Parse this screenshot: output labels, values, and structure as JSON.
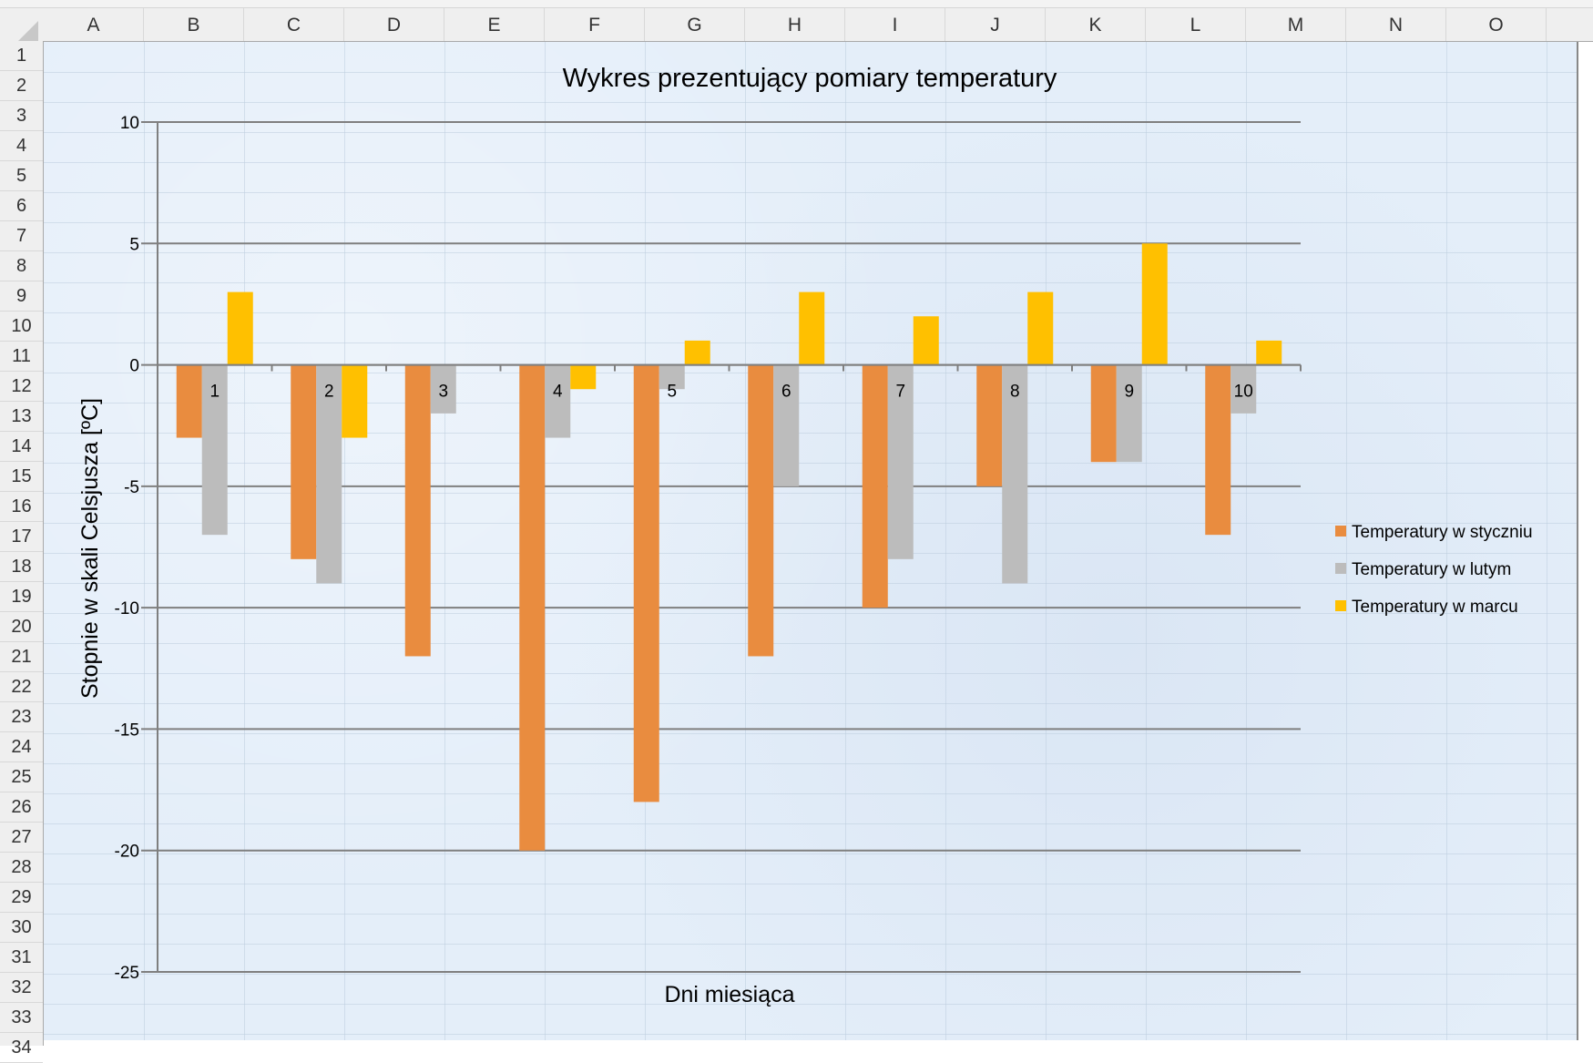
{
  "spreadsheet": {
    "columns": [
      "A",
      "B",
      "C",
      "D",
      "E",
      "F",
      "G",
      "H",
      "I",
      "J",
      "K",
      "L",
      "M",
      "N",
      "O"
    ],
    "rows": [
      "1",
      "2",
      "3",
      "4",
      "5",
      "6",
      "7",
      "8",
      "9",
      "10",
      "11",
      "12",
      "13",
      "14",
      "15",
      "16",
      "17",
      "18",
      "19",
      "20",
      "21",
      "22",
      "23",
      "24",
      "25",
      "26",
      "27",
      "28",
      "29",
      "30",
      "31",
      "32",
      "33",
      "34"
    ]
  },
  "chart_data": {
    "type": "bar",
    "title": "Wykres prezentujący pomiary temperatury",
    "xlabel": "Dni miesiąca",
    "ylabel": "Stopnie w skali Celsjusza [ºC]",
    "categories": [
      "1",
      "2",
      "3",
      "4",
      "5",
      "6",
      "7",
      "8",
      "9",
      "10"
    ],
    "ylim": [
      -25,
      10
    ],
    "yticks": [
      "10",
      "5",
      "0",
      "-5",
      "-10",
      "-15",
      "-20",
      "-25"
    ],
    "grid": true,
    "legend_position": "right",
    "series": [
      {
        "name": "Temperatury w styczniu",
        "color": "#e98c3f",
        "values": [
          -3,
          -8,
          -12,
          -20,
          -18,
          -12,
          -10,
          -5,
          -4,
          -7
        ]
      },
      {
        "name": "Temperatury w lutym",
        "color": "#bcbcbc",
        "values": [
          -7,
          -9,
          -2,
          -3,
          -1,
          -5,
          -8,
          -9,
          -4,
          -2
        ]
      },
      {
        "name": "Temperatury w marcu",
        "color": "#ffc000",
        "values": [
          3,
          -3,
          0,
          -1,
          1,
          3,
          2,
          3,
          5,
          1
        ]
      }
    ]
  }
}
